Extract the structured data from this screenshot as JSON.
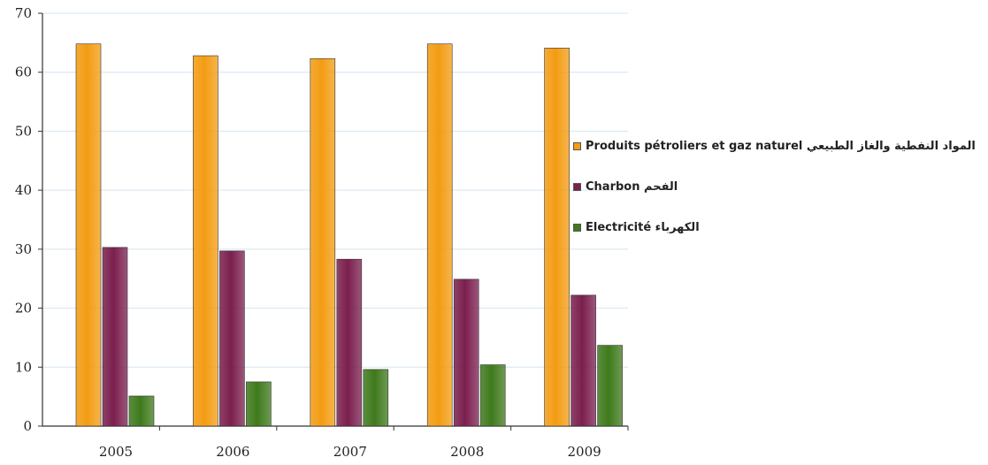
{
  "chart_data": {
    "type": "bar",
    "categories": [
      "2005",
      "2006",
      "2007",
      "2008",
      "2009"
    ],
    "series": [
      {
        "name": "Produits pétroliers et gaz  naturel المواد النفطية والغاز الطبيعي",
        "values": [
          64.8,
          62.8,
          62.3,
          64.8,
          64.1
        ],
        "color": "#F39C12"
      },
      {
        "name": "Charbon الفحم",
        "values": [
          30.3,
          29.7,
          28.3,
          24.9,
          22.2
        ],
        "color": "#7B1F4E"
      },
      {
        "name": "Electricité الكهرباء",
        "values": [
          5.1,
          7.5,
          9.6,
          10.4,
          13.7
        ],
        "color": "#3F7A1C"
      }
    ],
    "ylim": [
      0,
      70
    ],
    "yticks": [
      "0",
      "10",
      "20",
      "30",
      "40",
      "50",
      "60",
      "70"
    ],
    "grid": true,
    "legend_position": "right"
  }
}
